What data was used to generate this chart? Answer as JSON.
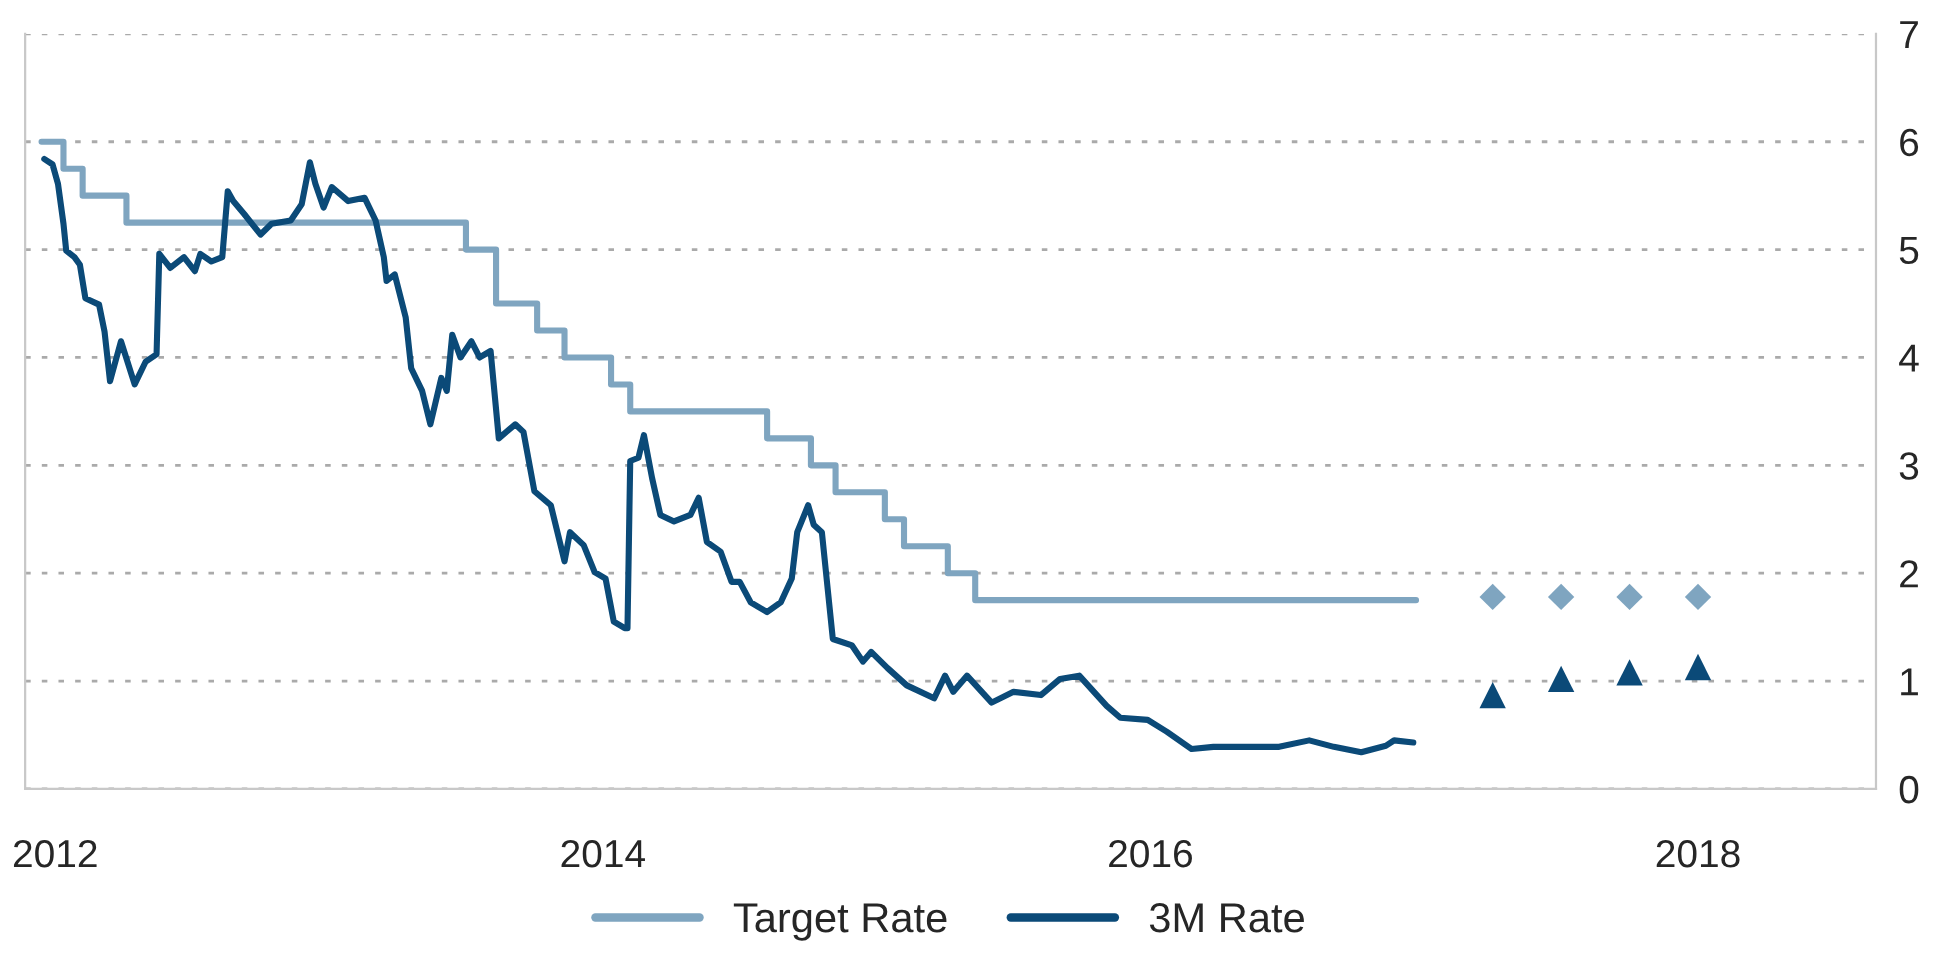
{
  "chart_data": {
    "type": "line",
    "xlim": [
      2011.89,
      2018.65
    ],
    "xticks": [
      2012,
      2014,
      2016,
      2018
    ],
    "ylim": [
      0,
      7
    ],
    "yticks": [
      0,
      1,
      2,
      3,
      4,
      5,
      6,
      7
    ],
    "grid": "y",
    "legend": "bottom",
    "series": [
      {
        "name": "Target Rate",
        "type": "step",
        "color": "#7fa5c0",
        "marker": "none",
        "x": [
          2011.95,
          2012.03,
          2012.1,
          2012.26,
          2013.5,
          2013.61,
          2013.76,
          2013.86,
          2014.03,
          2014.1,
          2014.6,
          2014.76,
          2014.85,
          2015.03,
          2015.1,
          2015.26,
          2015.36,
          2016.97
        ],
        "values": [
          6,
          5.75,
          5.5,
          5.25,
          5,
          4.5,
          4.25,
          4,
          3.75,
          3.5,
          3.25,
          3,
          2.75,
          2.5,
          2.25,
          2,
          1.75,
          1.75
        ]
      },
      {
        "name": "3M Rate",
        "color": "#0b4a78",
        "marker": "none",
        "x": [
          2011.96,
          2011.99,
          2012.01,
          2012.03,
          2012.04,
          2012.07,
          2012.09,
          2012.11,
          2012.16,
          2012.18,
          2012.2,
          2012.24,
          2012.29,
          2012.33,
          2012.37,
          2012.38,
          2012.42,
          2012.47,
          2012.51,
          2012.53,
          2012.57,
          2012.61,
          2012.63,
          2012.65,
          2012.69,
          2012.75,
          2012.79,
          2012.86,
          2012.9,
          2012.93,
          2012.95,
          2012.98,
          2013.01,
          2013.07,
          2013.13,
          2013.17,
          2013.2,
          2013.21,
          2013.24,
          2013.28,
          2013.3,
          2013.34,
          2013.37,
          2013.41,
          2013.43,
          2013.45,
          2013.48,
          2013.52,
          2013.55,
          2013.59,
          2013.62,
          2013.68,
          2013.71,
          2013.75,
          2013.81,
          2013.86,
          2013.88,
          2013.93,
          2013.97,
          2014.01,
          2014.04,
          2014.08,
          2014.09,
          2014.1,
          2014.13,
          2014.15,
          2014.18,
          2014.21,
          2014.26,
          2014.32,
          2014.35,
          2014.38,
          2014.43,
          2014.47,
          2014.5,
          2014.54,
          2014.6,
          2014.65,
          2014.69,
          2014.71,
          2014.75,
          2014.77,
          2014.8,
          2014.84,
          2014.91,
          2014.95,
          2014.98,
          2015.04,
          2015.11,
          2015.21,
          2015.25,
          2015.28,
          2015.33,
          2015.42,
          2015.5,
          2015.6,
          2015.67,
          2015.74,
          2015.84,
          2015.89,
          2015.99,
          2016.06,
          2016.15,
          2016.23,
          2016.47,
          2016.58,
          2016.67,
          2016.77,
          2016.86,
          2016.89,
          2016.96
        ],
        "values": [
          5.84,
          5.79,
          5.61,
          5.24,
          4.99,
          4.93,
          4.86,
          4.55,
          4.49,
          4.24,
          3.78,
          4.15,
          3.75,
          3.96,
          4.03,
          4.96,
          4.83,
          4.93,
          4.8,
          4.96,
          4.89,
          4.93,
          5.54,
          5.45,
          5.33,
          5.14,
          5.24,
          5.27,
          5.42,
          5.81,
          5.61,
          5.39,
          5.58,
          5.45,
          5.48,
          5.27,
          4.93,
          4.71,
          4.77,
          4.37,
          3.9,
          3.69,
          3.38,
          3.81,
          3.69,
          4.21,
          4.0,
          4.15,
          4.0,
          4.06,
          3.25,
          3.38,
          3.31,
          2.76,
          2.63,
          2.11,
          2.38,
          2.26,
          2.01,
          1.95,
          1.55,
          1.49,
          1.49,
          3.04,
          3.07,
          3.28,
          2.88,
          2.54,
          2.48,
          2.54,
          2.7,
          2.29,
          2.2,
          1.92,
          1.92,
          1.73,
          1.64,
          1.73,
          1.95,
          2.38,
          2.63,
          2.45,
          2.38,
          1.39,
          1.33,
          1.18,
          1.27,
          1.12,
          0.96,
          0.84,
          1.05,
          0.9,
          1.05,
          0.8,
          0.9,
          0.87,
          1.02,
          1.05,
          0.77,
          0.66,
          0.64,
          0.53,
          0.37,
          0.39,
          0.39,
          0.45,
          0.39,
          0.34,
          0.4,
          0.45,
          0.43
        ]
      },
      {
        "type": "scatter",
        "color": "#7fa5c0",
        "marker": "diamond",
        "x": [
          2017.25,
          2017.5,
          2017.75,
          2018.0
        ],
        "values": [
          1.78,
          1.78,
          1.78,
          1.78
        ]
      },
      {
        "type": "scatter",
        "color": "#0b4a78",
        "marker": "triangle",
        "x": [
          2017.25,
          2017.5,
          2017.75,
          2018.0
        ],
        "values": [
          0.87,
          1.02,
          1.08,
          1.13
        ]
      }
    ]
  }
}
